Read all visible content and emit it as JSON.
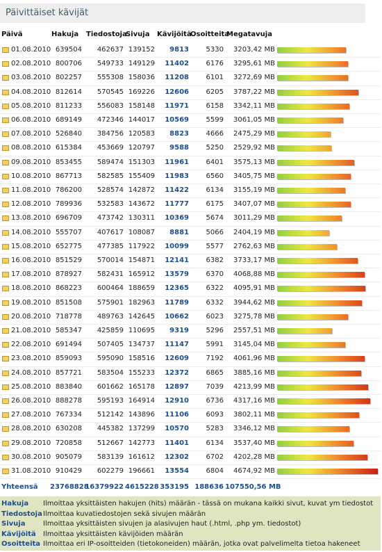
{
  "title": "Päivittäiset kävijät",
  "headers": [
    "Päivä",
    "Hakuja",
    "Tiedostoja",
    "Sivuja",
    "Kävijöitä",
    "Osoitteita",
    "Megatavuja"
  ],
  "rows": [
    [
      "01.08.2010",
      639504,
      462637,
      139152,
      9813,
      5330,
      3203.42,
      "3203,42 MB"
    ],
    [
      "02.08.2010",
      800706,
      549733,
      149129,
      11402,
      6176,
      3295.61,
      "3295,61 MB"
    ],
    [
      "03.08.2010",
      802257,
      555308,
      158036,
      11208,
      6101,
      3272.69,
      "3272,69 MB"
    ],
    [
      "04.08.2010",
      812614,
      570545,
      169226,
      12606,
      6205,
      3787.22,
      "3787,22 MB"
    ],
    [
      "05.08.2010",
      811233,
      556083,
      158148,
      11971,
      6158,
      3342.11,
      "3342,11 MB"
    ],
    [
      "06.08.2010",
      689149,
      472346,
      144017,
      10569,
      5599,
      3061.05,
      "3061,05 MB"
    ],
    [
      "07.08.2010",
      526840,
      384756,
      120583,
      8823,
      4666,
      2475.29,
      "2475,29 MB"
    ],
    [
      "08.08.2010",
      615384,
      453669,
      120797,
      9588,
      5250,
      2529.92,
      "2529,92 MB"
    ],
    [
      "09.08.2010",
      853455,
      589474,
      151303,
      11961,
      6401,
      3575.13,
      "3575,13 MB"
    ],
    [
      "10.08.2010",
      867713,
      582585,
      155409,
      11983,
      6560,
      3405.75,
      "3405,75 MB"
    ],
    [
      "11.08.2010",
      786200,
      528574,
      142872,
      11422,
      6134,
      3155.19,
      "3155,19 MB"
    ],
    [
      "12.08.2010",
      789936,
      532583,
      143672,
      11777,
      6175,
      3407.07,
      "3407,07 MB"
    ],
    [
      "13.08.2010",
      696709,
      473742,
      130311,
      10369,
      5674,
      3011.29,
      "3011,29 MB"
    ],
    [
      "14.08.2010",
      555707,
      407617,
      108087,
      8881,
      5066,
      2404.19,
      "2404,19 MB"
    ],
    [
      "15.08.2010",
      652775,
      477385,
      117922,
      10099,
      5577,
      2762.63,
      "2762,63 MB"
    ],
    [
      "16.08.2010",
      851529,
      570014,
      154871,
      12141,
      6382,
      3733.17,
      "3733,17 MB"
    ],
    [
      "17.08.2010",
      878927,
      582431,
      165912,
      13579,
      6370,
      4068.88,
      "4068,88 MB"
    ],
    [
      "18.08.2010",
      868223,
      600464,
      188659,
      12365,
      6322,
      4095.91,
      "4095,91 MB"
    ],
    [
      "19.08.2010",
      851508,
      575901,
      182963,
      11789,
      6332,
      3944.62,
      "3944,62 MB"
    ],
    [
      "20.08.2010",
      718778,
      489763,
      142645,
      10662,
      6023,
      3275.78,
      "3275,78 MB"
    ],
    [
      "21.08.2010",
      585347,
      425859,
      110695,
      9319,
      5296,
      2557.51,
      "2557,51 MB"
    ],
    [
      "22.08.2010",
      691494,
      507405,
      134737,
      11147,
      5991,
      3145.04,
      "3145,04 MB"
    ],
    [
      "23.08.2010",
      859093,
      595090,
      158516,
      12609,
      7192,
      4061.96,
      "4061,96 MB"
    ],
    [
      "24.08.2010",
      857721,
      583504,
      155233,
      12372,
      6865,
      3885.16,
      "3885,16 MB"
    ],
    [
      "25.08.2010",
      883840,
      601662,
      165178,
      12897,
      7039,
      4213.99,
      "4213,99 MB"
    ],
    [
      "26.08.2010",
      888278,
      595193,
      164914,
      12910,
      6736,
      4317.16,
      "4317,16 MB"
    ],
    [
      "27.08.2010",
      767334,
      512142,
      143896,
      11106,
      6093,
      3802.11,
      "3802,11 MB"
    ],
    [
      "28.08.2010",
      630208,
      445382,
      137299,
      10570,
      5283,
      3346.12,
      "3346,12 MB"
    ],
    [
      "29.08.2010",
      720858,
      512667,
      142773,
      11401,
      6134,
      3537.4,
      "3537,40 MB"
    ],
    [
      "30.08.2010",
      905079,
      583139,
      161612,
      12302,
      6702,
      4202.28,
      "4202,28 MB"
    ],
    [
      "31.08.2010",
      910429,
      602279,
      196661,
      13554,
      6804,
      4674.92,
      "4674,92 MB"
    ]
  ],
  "total": [
    "Yhteensä",
    23768828,
    16379922,
    4615228,
    353195,
    188636,
    107550.56,
    "107550,56 MB"
  ],
  "legend": [
    [
      "Hakuja",
      "Ilmoittaa yksittäisten hakujen (hits) määrän - tässä on mukana kaikki sivut, kuvat ym tiedostot"
    ],
    [
      "Tiedostoja",
      "Ilmoittaa kuvatiedostojen sekä sivujen määrän"
    ],
    [
      "Sivuja",
      "Ilmoittaa yksittäisten sivujen ja alasivujen haut (.html, .php ym. tiedostot)"
    ],
    [
      "Kävijöitä",
      "Ilmoittaa yksittäisten kävijöiden määrän"
    ],
    [
      "Osoitteita",
      "Ilmoittaa eri IP-osoitteiden (tietokoneiden) määrän, jotka ovat palvelimelta tietoa hakeneet"
    ]
  ]
}
